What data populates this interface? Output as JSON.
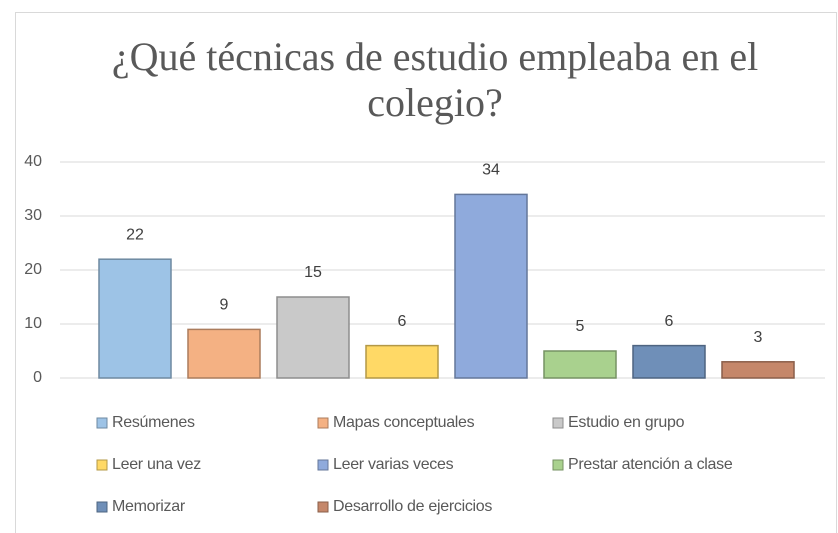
{
  "chart_data": {
    "type": "bar",
    "title": "¿Qué técnicas de estudio empleaba en el colegio?",
    "categories": [
      null
    ],
    "series": [
      {
        "name": "Resúmenes",
        "color": "#9dc3e6",
        "values": [
          22
        ]
      },
      {
        "name": "Mapas conceptuales",
        "color": "#f4b183",
        "values": [
          9
        ]
      },
      {
        "name": "Estudio en grupo",
        "color": "#c9c9c9",
        "values": [
          15
        ]
      },
      {
        "name": "Leer una vez",
        "color": "#ffd966",
        "values": [
          6
        ]
      },
      {
        "name": "Leer varias veces",
        "color": "#8faadc",
        "values": [
          34
        ]
      },
      {
        "name": "Prestar atención a clase",
        "color": "#a9d18e",
        "values": [
          5
        ]
      },
      {
        "name": "Memorizar",
        "color": "#6f8fb8",
        "values": [
          6
        ]
      },
      {
        "name": "Desarrollo de ejercicios",
        "color": "#c5876a",
        "values": [
          3
        ]
      }
    ],
    "ylim": [
      0,
      40
    ],
    "yticks": [
      0,
      10,
      20,
      30,
      40
    ],
    "grid": true,
    "legend": "bottom"
  }
}
